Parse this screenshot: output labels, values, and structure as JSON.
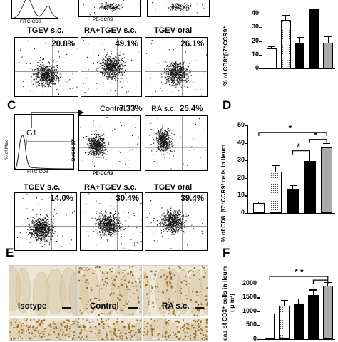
{
  "panel_labels": {
    "c": "C",
    "d": "D",
    "e": "E",
    "f": "F"
  },
  "top_axis_labels": {
    "fitc_cd8": "FITC-CD8",
    "pe_ccr9": "PE-CCR9"
  },
  "panel_b_top_plots": [
    {
      "name": "TGEV s.c.",
      "percent": "20.8%"
    },
    {
      "name": "RA+TGEV s.c.",
      "percent": "49.1%"
    },
    {
      "name": "TGEV oral",
      "percent": "26.1%"
    }
  ],
  "panel_c": {
    "histogram_gate": "G1",
    "histogram_ylabel": "% of Max",
    "histogram_xlabel": "FITC-CD8",
    "plot_ylabel": "DY649-β7",
    "plot_xlabel": "PE-CCR9",
    "plots_top": [
      {
        "name": "Control",
        "percent": "7.33%"
      },
      {
        "name": "RA s.c.",
        "percent": "25.4%"
      }
    ],
    "plots_bottom": [
      {
        "name": "TGEV s.c.",
        "percent": "14.0%"
      },
      {
        "name": "RA+TGEV s.c.",
        "percent": "30.4%"
      },
      {
        "name": "TGEV oral",
        "percent": "39.4%"
      }
    ]
  },
  "panel_e": {
    "stain_label": "CD3",
    "micrographs": [
      {
        "name": "Isotype"
      },
      {
        "name": "Control"
      },
      {
        "name": "RA s.c."
      }
    ]
  },
  "significance": {
    "d_marks": [
      "*",
      "*",
      "*"
    ],
    "f_marks": [
      "* *"
    ]
  },
  "chart_data": [
    {
      "type": "bar",
      "ylabel": "% of CD8⁺β7⁺CCR9⁺",
      "categories": [
        "1",
        "2",
        "3",
        "4",
        "5"
      ],
      "values": [
        14.5,
        35.5,
        18.5,
        43,
        18.5
      ],
      "errors": [
        1.5,
        3.5,
        4.5,
        3,
        5
      ],
      "yticks": [
        "0",
        "10",
        "20",
        "30",
        "40"
      ],
      "ylim": [
        0,
        50
      ],
      "fills": [
        "#ffffff",
        "dotted",
        "#000000",
        "#000000",
        "#a9a9a9"
      ]
    },
    {
      "type": "bar",
      "ylabel": "% of CD8⁺β7⁺CCR9⁺cells in ileum",
      "categories": [
        "1",
        "2",
        "3",
        "4",
        "5"
      ],
      "values": [
        5.5,
        23.5,
        14,
        29.5,
        37.5
      ],
      "errors": [
        1,
        4,
        2,
        5.5,
        2.5
      ],
      "yticks": [
        "0",
        "10",
        "20",
        "30",
        "40",
        "50"
      ],
      "ylim": [
        0,
        50
      ],
      "fills": [
        "#ffffff",
        "dotted",
        "#000000",
        "#000000",
        "#a9a9a9"
      ]
    },
    {
      "type": "bar",
      "ylabel": "eas of CD3⁺ cells in ileum",
      "ylabel2": "( μ m²)",
      "categories": [
        "1",
        "2",
        "3",
        "4",
        "5"
      ],
      "values": [
        930,
        1190,
        1270,
        1590,
        1920
      ],
      "errors": [
        170,
        210,
        190,
        190,
        130
      ],
      "yticks": [
        "0",
        "500",
        "1000",
        "1500",
        "2000"
      ],
      "ylim": [
        0,
        2200
      ],
      "fills": [
        "#ffffff",
        "dotted",
        "#000000",
        "#000000",
        "#a9a9a9"
      ]
    }
  ]
}
